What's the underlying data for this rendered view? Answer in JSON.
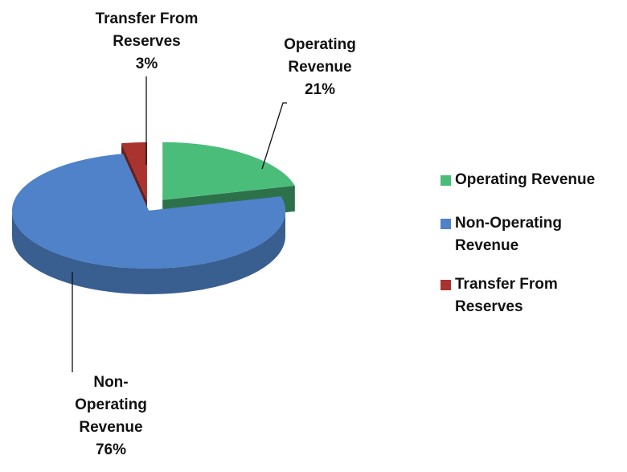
{
  "chart_data": {
    "type": "pie",
    "categories": [
      "Operating Revenue",
      "Non-Operating Revenue",
      "Transfer From Reserves"
    ],
    "values": [
      21,
      76,
      3
    ],
    "value_labels": [
      "21%",
      "76%",
      "3%"
    ],
    "colors": [
      "#4bbd7b",
      "#4f82c8",
      "#a8332f"
    ],
    "legend": "right"
  }
}
